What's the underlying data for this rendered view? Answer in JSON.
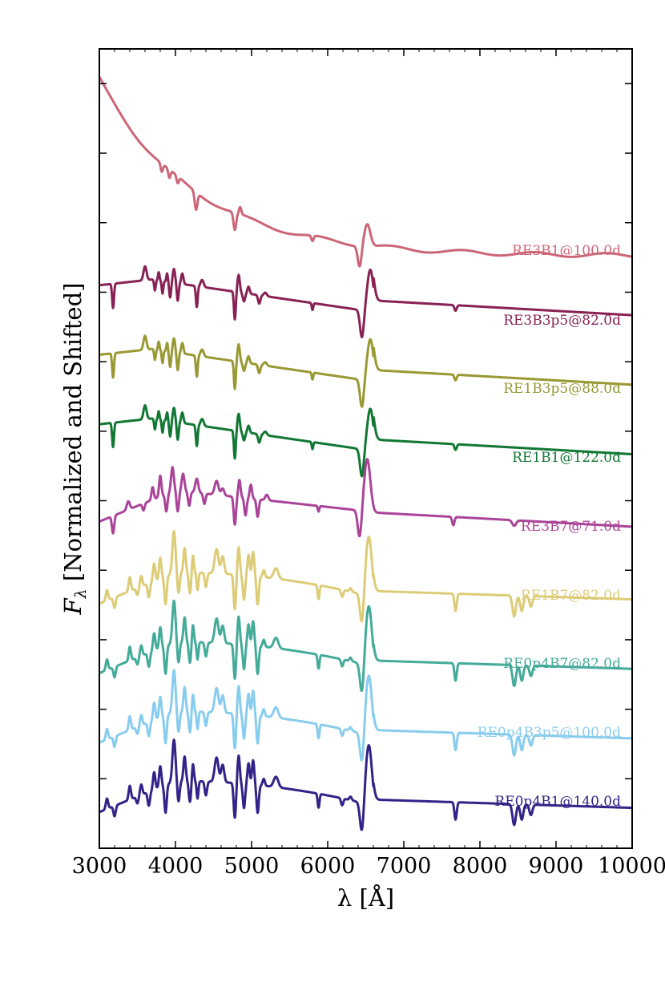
{
  "chart_data": {
    "type": "line",
    "title": "",
    "xlabel": "λ [Å]",
    "ylabel": "F_λ [Normalized and Shifted]",
    "ylabel_main": "F",
    "ylabel_sub": "λ",
    "ylabel_rest": " [Normalized and Shifted]",
    "xlim": [
      3000,
      10000
    ],
    "ylim": [
      0,
      11.5
    ],
    "x_ticks": [
      3000,
      4000,
      5000,
      6000,
      7000,
      8000,
      9000,
      10000
    ],
    "x_tick_labels": [
      "3000",
      "4000",
      "5000",
      "6000",
      "7000",
      "8000",
      "9000",
      "10000"
    ],
    "y_tick_labels_visible": false,
    "grid": false,
    "legend": "inline labels at right end of each curve",
    "series": [
      {
        "name": "RE3B1@100.0d",
        "color": "#cc6677",
        "offset": 8.1,
        "style": "blue-continuum"
      },
      {
        "name": "RE3B3p5@82.0d",
        "color": "#882255",
        "offset": 7.1,
        "style": "early"
      },
      {
        "name": "RE1B3p5@88.0d",
        "color": "#999933",
        "offset": 6.1,
        "style": "early"
      },
      {
        "name": "RE1B1@122.0d",
        "color": "#117733",
        "offset": 5.1,
        "style": "early"
      },
      {
        "name": "RE3B7@71.0d",
        "color": "#aa4499",
        "offset": 4.1,
        "style": "mid"
      },
      {
        "name": "RE1B7@82.0d",
        "color": "#ddcc77",
        "offset": 3.1,
        "style": "late"
      },
      {
        "name": "RE0p4B7@82.0d",
        "color": "#44aa99",
        "offset": 2.1,
        "style": "late"
      },
      {
        "name": "RE0p4B3p5@100.0d",
        "color": "#88ccee",
        "offset": 1.1,
        "style": "late"
      },
      {
        "name": "RE0p4B1@140.0d",
        "color": "#332288",
        "offset": 0.1,
        "style": "late"
      }
    ]
  }
}
